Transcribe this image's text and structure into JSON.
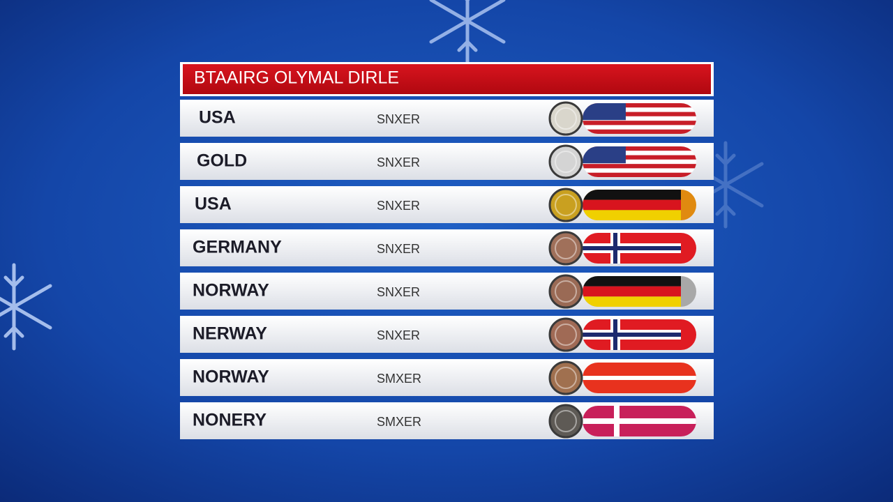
{
  "header": {
    "title": "BTAAIRG OLYMAL DIRLE"
  },
  "table": {
    "rows": [
      [
        "USA",
        "SNXER"
      ],
      [
        "GOLD",
        "SNXER"
      ],
      [
        "USA",
        "SNXER"
      ],
      [
        "GERMANY",
        "SNXER"
      ],
      [
        "NORWAY",
        "SNXER"
      ],
      [
        "NERWAY",
        "SNXER"
      ],
      [
        "NORWAY",
        "SMXER"
      ],
      [
        "NONERY",
        "SMXER"
      ]
    ]
  }
}
